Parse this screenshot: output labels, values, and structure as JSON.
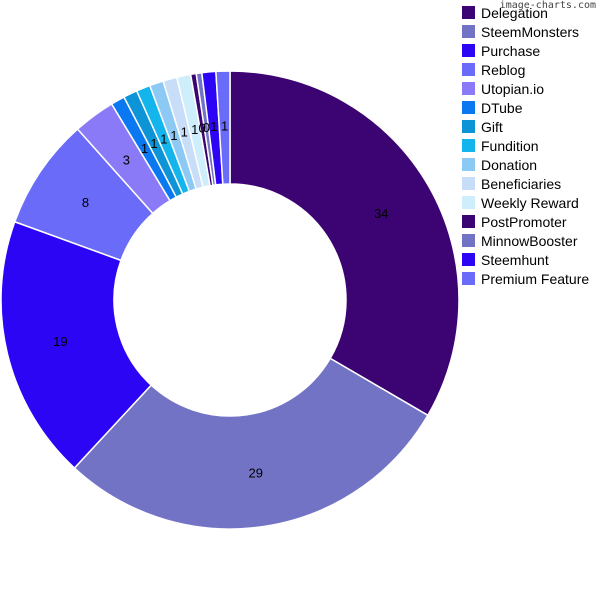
{
  "watermark": "image-charts.com",
  "chart_data": {
    "type": "pie",
    "title": "",
    "series": [
      {
        "name": "Delegation",
        "value": 34,
        "color": "#3c0473"
      },
      {
        "name": "SteemMonsters",
        "value": 29,
        "color": "#7373c6"
      },
      {
        "name": "Purchase",
        "value": 19,
        "color": "#2d05f5"
      },
      {
        "name": "Reblog",
        "value": 8,
        "color": "#6b6bfa"
      },
      {
        "name": "Utopian.io",
        "value": 3,
        "color": "#8a7af8"
      },
      {
        "name": "DTube",
        "value": 1,
        "color": "#0a78f0"
      },
      {
        "name": "Gift",
        "value": 1,
        "color": "#0c94d6"
      },
      {
        "name": "Fundition",
        "value": 1,
        "color": "#14b4ec"
      },
      {
        "name": "Donation",
        "value": 1,
        "color": "#8ccaf5"
      },
      {
        "name": "Beneficiaries",
        "value": 1,
        "color": "#c8ddf8"
      },
      {
        "name": "Weekly Reward",
        "value": 1,
        "color": "#cdeefa"
      },
      {
        "name": "PostPromoter",
        "value": 0,
        "color": "#3c0473"
      },
      {
        "name": "MinnowBooster",
        "value": 0,
        "color": "#7373c6"
      },
      {
        "name": "Steemhunt",
        "value": 1,
        "color": "#2d05f5"
      },
      {
        "name": "Premium Feature",
        "value": 1,
        "color": "#6b6bfa"
      }
    ],
    "legend_position": "top-right",
    "hole": true
  }
}
